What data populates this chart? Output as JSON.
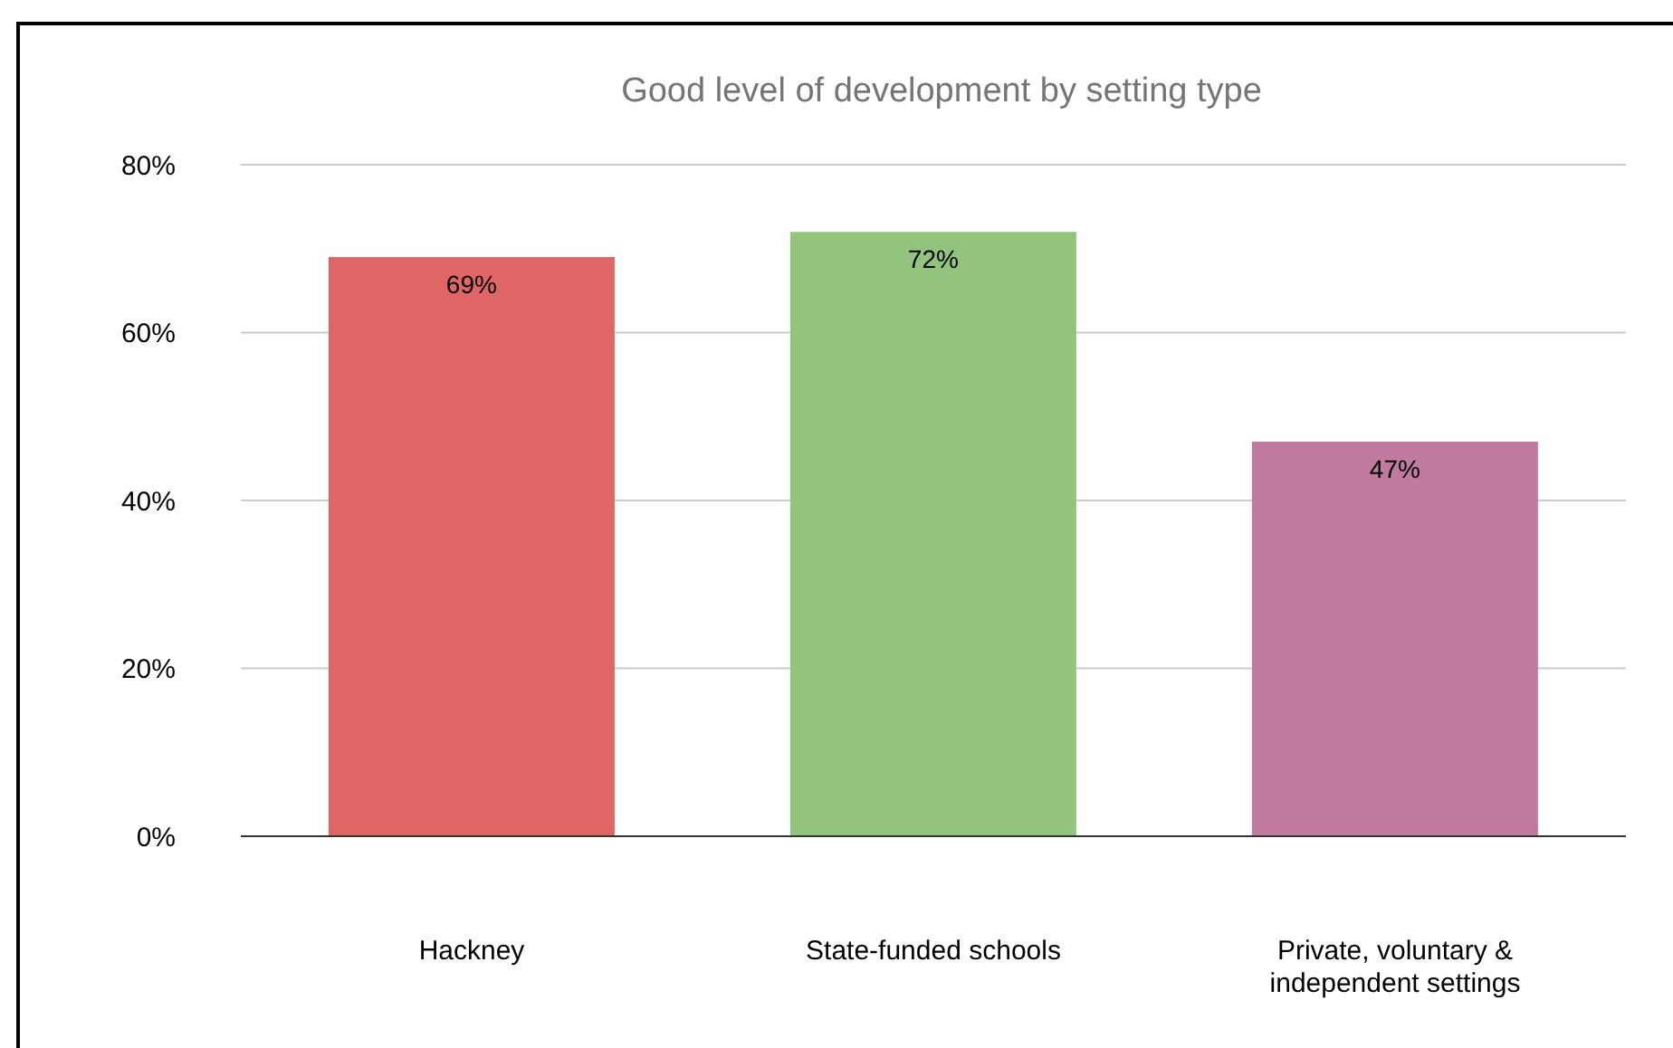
{
  "chart_data": {
    "type": "bar",
    "title": "Good level of development by setting type",
    "categories": [
      "Hackney",
      "State-funded schools",
      "Private, voluntary & independent settings"
    ],
    "values": [
      69,
      72,
      47
    ],
    "colors": [
      "#e06666",
      "#93c47d",
      "#c27ba0"
    ],
    "value_labels": [
      "69%",
      "72%",
      "47%"
    ],
    "ylim": [
      0,
      80
    ],
    "yticks": [
      {
        "value": 0,
        "label": "0%"
      },
      {
        "value": 20,
        "label": "20%"
      },
      {
        "value": 40,
        "label": "40%"
      },
      {
        "value": 60,
        "label": "60%"
      },
      {
        "value": 80,
        "label": "80%"
      }
    ],
    "grid": "y"
  }
}
